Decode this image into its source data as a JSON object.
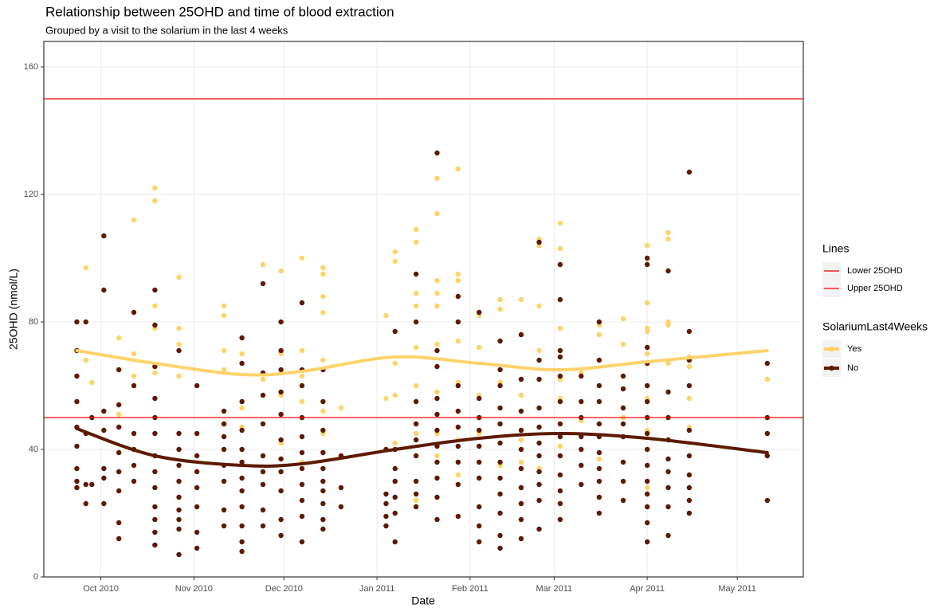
{
  "chart_data": {
    "type": "scatter",
    "title": "Relationship between 25OHD and time of blood extraction",
    "subtitle": "Grouped by a visit to the solarium in the last 4 weeks",
    "x_label": "Date",
    "y_label": "25OHD (nmol/L)",
    "xlim": [
      "2010-09-12",
      "2011-05-23"
    ],
    "xticks": [
      {
        "value": "2010-10-01",
        "label": "Oct 2010"
      },
      {
        "value": "2010-11-01",
        "label": "Nov 2010"
      },
      {
        "value": "2010-12-01",
        "label": "Dec 2010"
      },
      {
        "value": "2011-01-01",
        "label": "Jan 2011"
      },
      {
        "value": "2011-02-01",
        "label": "Feb 2011"
      },
      {
        "value": "2011-03-01",
        "label": "Mar 2011"
      },
      {
        "value": "2011-04-01",
        "label": "Apr 2011"
      },
      {
        "value": "2011-05-01",
        "label": "May 2011"
      }
    ],
    "ylim": [
      0,
      168
    ],
    "yticks": [
      0,
      40,
      80,
      120,
      160
    ],
    "grid": true,
    "hlines_title": "Lines",
    "hlines": [
      {
        "name": "Lower 25OHD",
        "value": 50,
        "color": "#ff0000"
      },
      {
        "name": "Upper 25OHD",
        "value": 150,
        "color": "#ff0000"
      }
    ],
    "legend_title": "SolariumLast4Weeks",
    "series": [
      {
        "name": "Yes",
        "color": "#fdd36a",
        "points": [
          {
            "x": "2010-09-23",
            "values": [
              55
            ]
          },
          {
            "x": "2010-09-26",
            "values": [
              97,
              68
            ]
          },
          {
            "x": "2010-09-28",
            "values": [
              61
            ]
          },
          {
            "x": "2010-10-07",
            "values": [
              75,
              65,
              51
            ]
          },
          {
            "x": "2010-10-12",
            "values": [
              112,
              70,
              63
            ]
          },
          {
            "x": "2010-10-19",
            "values": [
              122,
              118,
              85,
              78,
              64
            ]
          },
          {
            "x": "2010-10-27",
            "values": [
              94,
              78,
              73,
              63,
              45,
              18
            ]
          },
          {
            "x": "2010-11-11",
            "values": [
              85,
              82,
              71,
              65,
              48
            ]
          },
          {
            "x": "2010-11-17",
            "values": [
              70,
              53,
              47
            ]
          },
          {
            "x": "2010-11-24",
            "values": [
              98,
              62
            ]
          },
          {
            "x": "2010-11-30",
            "values": [
              96,
              70,
              57,
              42
            ]
          },
          {
            "x": "2010-12-07",
            "values": [
              100,
              71,
              63,
              55,
              36
            ]
          },
          {
            "x": "2010-12-14",
            "values": [
              97,
              95,
              88,
              83,
              68,
              52,
              45
            ]
          },
          {
            "x": "2010-12-20",
            "values": [
              53
            ]
          },
          {
            "x": "2011-01-04",
            "values": [
              82,
              56
            ]
          },
          {
            "x": "2011-01-07",
            "values": [
              102,
              99,
              67,
              57,
              42
            ]
          },
          {
            "x": "2011-01-14",
            "values": [
              109,
              105,
              89,
              85,
              72,
              60,
              45,
              24
            ]
          },
          {
            "x": "2011-01-21",
            "values": [
              125,
              114,
              93,
              89,
              85,
              73,
              58,
              45,
              38
            ]
          },
          {
            "x": "2011-01-28",
            "values": [
              128,
              95,
              93,
              74,
              61,
              43,
              32
            ]
          },
          {
            "x": "2011-02-04",
            "values": [
              82,
              72,
              57,
              45
            ]
          },
          {
            "x": "2011-02-11",
            "values": [
              87,
              84,
              61,
              35
            ]
          },
          {
            "x": "2011-02-18",
            "values": [
              87,
              57,
              43,
              36
            ]
          },
          {
            "x": "2011-02-24",
            "values": [
              106,
              104,
              85,
              71,
              47,
              34
            ]
          },
          {
            "x": "2011-03-03",
            "values": [
              111,
              103,
              78,
              62,
              56,
              41
            ]
          },
          {
            "x": "2011-03-10",
            "values": [
              64,
              49
            ]
          },
          {
            "x": "2011-03-16",
            "values": [
              79,
              76,
              48,
              37,
              25
            ]
          },
          {
            "x": "2011-03-24",
            "values": [
              81,
              73,
              50,
              24
            ]
          },
          {
            "x": "2011-04-01",
            "values": [
              104,
              100,
              86,
              78,
              77,
              70,
              56,
              46,
              28
            ]
          },
          {
            "x": "2011-04-08",
            "values": [
              108,
              106,
              80,
              79,
              67
            ]
          },
          {
            "x": "2011-04-15",
            "values": [
              69,
              66,
              56,
              47
            ]
          },
          {
            "x": "2011-05-11",
            "values": [
              62
            ]
          }
        ],
        "smooth": {
          "x": [
            "2010-09-23",
            "2010-10-19",
            "2010-11-17",
            "2010-12-07",
            "2011-01-07",
            "2011-02-04",
            "2011-03-03",
            "2011-04-01",
            "2011-05-11"
          ],
          "values": [
            71,
            67,
            63.5,
            64.5,
            69,
            67,
            65,
            67.5,
            71
          ]
        }
      },
      {
        "name": "No",
        "color": "#5c1a00",
        "points": [
          {
            "x": "2010-09-23",
            "values": [
              80,
              71,
              63,
              55,
              47,
              41,
              34,
              30,
              28
            ]
          },
          {
            "x": "2010-09-26",
            "values": [
              80,
              45,
              29,
              23
            ]
          },
          {
            "x": "2010-09-28",
            "values": [
              50,
              29
            ]
          },
          {
            "x": "2010-10-02",
            "values": [
              107,
              90,
              52,
              46,
              34,
              31,
              23
            ]
          },
          {
            "x": "2010-10-07",
            "values": [
              65,
              54,
              47,
              39,
              33,
              27,
              17,
              12
            ]
          },
          {
            "x": "2010-10-12",
            "values": [
              83,
              60,
              45,
              40,
              35,
              30
            ]
          },
          {
            "x": "2010-10-19",
            "values": [
              90,
              79,
              66,
              56,
              50,
              45,
              38,
              33,
              28,
              22,
              18,
              14,
              10
            ]
          },
          {
            "x": "2010-10-27",
            "values": [
              71,
              45,
              40,
              35,
              30,
              25,
              21,
              18,
              15,
              7
            ]
          },
          {
            "x": "2010-11-02",
            "values": [
              60,
              45,
              38,
              33,
              28,
              22,
              14,
              9
            ]
          },
          {
            "x": "2010-11-11",
            "values": [
              52,
              48,
              44,
              40,
              35,
              30,
              21,
              16
            ]
          },
          {
            "x": "2010-11-17",
            "values": [
              75,
              67,
              55,
              46,
              40,
              36,
              31,
              27,
              22,
              16,
              11,
              8
            ]
          },
          {
            "x": "2010-11-24",
            "values": [
              92,
              64,
              57,
              48,
              38,
              33,
              29,
              21,
              16
            ]
          },
          {
            "x": "2010-11-30",
            "values": [
              80,
              71,
              65,
              58,
              51,
              43,
              37,
              33,
              27,
              18,
              13
            ]
          },
          {
            "x": "2010-12-07",
            "values": [
              86,
              65,
              60,
              50,
              44,
              39,
              34,
              29,
              24,
              19,
              11
            ]
          },
          {
            "x": "2010-12-14",
            "values": [
              65,
              55,
              46,
              39,
              34,
              30,
              27,
              23,
              18,
              15
            ]
          },
          {
            "x": "2010-12-20",
            "values": [
              38,
              28,
              22
            ]
          },
          {
            "x": "2011-01-04",
            "values": [
              40,
              26,
              23,
              19,
              16
            ]
          },
          {
            "x": "2011-01-07",
            "values": [
              77,
              40,
              34,
              30,
              25,
              20,
              11
            ]
          },
          {
            "x": "2011-01-14",
            "values": [
              95,
              80,
              55,
              48,
              43,
              38,
              30,
              26,
              22
            ]
          },
          {
            "x": "2011-01-21",
            "values": [
              133,
              71,
              66,
              56,
              51,
              46,
              41,
              36,
              31,
              25,
              18
            ]
          },
          {
            "x": "2011-01-28",
            "values": [
              88,
              80,
              60,
              52,
              47,
              41,
              36,
              29,
              19
            ]
          },
          {
            "x": "2011-02-04",
            "values": [
              83,
              56,
              50,
              46,
              41,
              36,
              31,
              22,
              16,
              11
            ]
          },
          {
            "x": "2011-02-11",
            "values": [
              74,
              65,
              60,
              53,
              48,
              42,
              36,
              31,
              26,
              20,
              13,
              9
            ]
          },
          {
            "x": "2011-02-18",
            "values": [
              76,
              62,
              52,
              46,
              40,
              34,
              28,
              23,
              18,
              12
            ]
          },
          {
            "x": "2011-02-24",
            "values": [
              105,
              68,
              62,
              53,
              47,
              42,
              38,
              33,
              29,
              24,
              15
            ]
          },
          {
            "x": "2011-03-03",
            "values": [
              98,
              87,
              71,
              69,
              63,
              55,
              48,
              44,
              38,
              32,
              27,
              23,
              18
            ]
          },
          {
            "x": "2011-03-10",
            "values": [
              63,
              55,
              50,
              44,
              40,
              35,
              29
            ]
          },
          {
            "x": "2011-03-16",
            "values": [
              80,
              68,
              60,
              55,
              48,
              44,
              39,
              34,
              30,
              25,
              20
            ]
          },
          {
            "x": "2011-03-24",
            "values": [
              63,
              59,
              53,
              48,
              44,
              36,
              30,
              24
            ]
          },
          {
            "x": "2011-04-01",
            "values": [
              100,
              98,
              72,
              67,
              60,
              55,
              50,
              45,
              40,
              35,
              30,
              26,
              22,
              17,
              11
            ]
          },
          {
            "x": "2011-04-08",
            "values": [
              96,
              58,
              50,
              43,
              37,
              33,
              28,
              22,
              13
            ]
          },
          {
            "x": "2011-04-15",
            "values": [
              127,
              77,
              68,
              60,
              46,
              38,
              32,
              28,
              24,
              20
            ]
          },
          {
            "x": "2011-05-11",
            "values": [
              67,
              50,
              45,
              38,
              24
            ]
          }
        ],
        "smooth": {
          "x": [
            "2010-09-23",
            "2010-10-19",
            "2010-11-17",
            "2010-12-07",
            "2011-01-07",
            "2011-02-04",
            "2011-03-03",
            "2011-04-01",
            "2011-05-11"
          ],
          "values": [
            46.5,
            38,
            35,
            35.5,
            40,
            43.5,
            45,
            43.5,
            39
          ]
        }
      }
    ]
  }
}
